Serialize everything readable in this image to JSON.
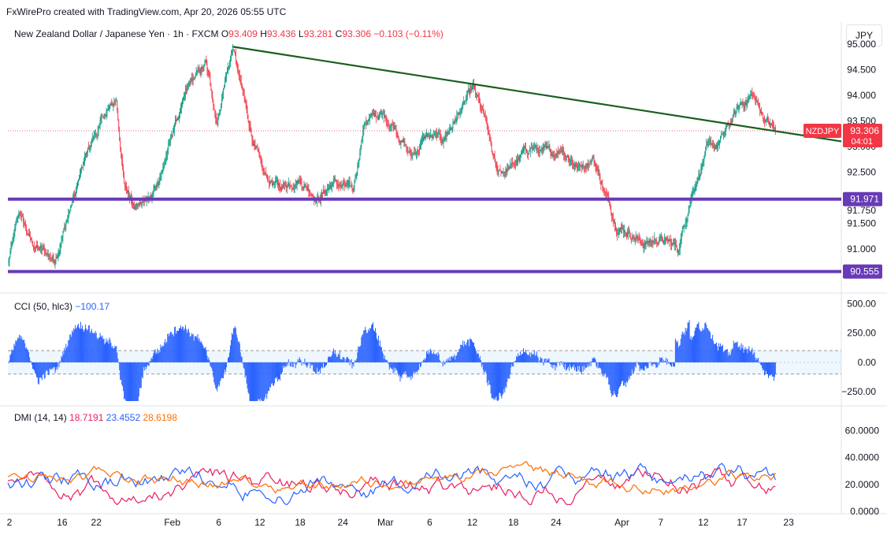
{
  "header": {
    "credit": "FxWirePro created with TradingView.com, Apr 20, 2026 05:55 UTC"
  },
  "legend": {
    "symbol": "New Zealand Dollar / Japanese Yen · 1h · FXCM",
    "o_label": "O",
    "o": "93.409",
    "h_label": "H",
    "h": "93.436",
    "l_label": "L",
    "l": "93.281",
    "c_label": "C",
    "c": "93.306",
    "change": "−0.103 (−0.11%)"
  },
  "currency_button": "JPY",
  "colors": {
    "up": "#089981",
    "down": "#f23645",
    "trend": "#1b5e20",
    "level": "#673ab7",
    "cci": "#2962ff",
    "dmi_plus": "#e91e63",
    "dmi_minus": "#2962ff",
    "adx": "#ff6d00"
  },
  "indicators": {
    "cci": {
      "name": "CCI (50, hlc3)",
      "value": "−100.17"
    },
    "dmi": {
      "name": "DMI (14, 14)",
      "plus": "18.7191",
      "minus": "23.4552",
      "adx": "28.6198"
    }
  },
  "price_axis": {
    "ticks": [
      "95.000",
      "94.500",
      "94.000",
      "93.500",
      "93.000",
      "92.500",
      "91.750",
      "91.500",
      "91.000"
    ],
    "levels": [
      "91.971",
      "90.555"
    ],
    "symbol_tag": "NZDJPY",
    "last_price": "93.306",
    "countdown": "04:01"
  },
  "cci_axis": {
    "ticks": [
      "500.00",
      "250.00",
      "0.00",
      "−250.00"
    ]
  },
  "dmi_axis": {
    "ticks": [
      "60.0000",
      "40.0000",
      "20.0000",
      "0.0000"
    ]
  },
  "time_axis": {
    "labels": [
      "2",
      "16",
      "22",
      "Feb",
      "6",
      "12",
      "18",
      "24",
      "Mar",
      "6",
      "12",
      "18",
      "24",
      "Apr",
      "7",
      "12",
      "17",
      "23"
    ]
  },
  "chart_data": {
    "type": "line",
    "title": "New Zealand Dollar / Japanese Yen · 1h · FXCM",
    "price_ylim": [
      90.55,
      95.0
    ],
    "anchors": [
      [
        0,
        90.7
      ],
      [
        15,
        91.7
      ],
      [
        30,
        91.1
      ],
      [
        60,
        90.8
      ],
      [
        85,
        92.0
      ],
      [
        105,
        93.0
      ],
      [
        125,
        93.6
      ],
      [
        140,
        93.9
      ],
      [
        150,
        92.2
      ],
      [
        165,
        91.9
      ],
      [
        185,
        92.0
      ],
      [
        200,
        92.6
      ],
      [
        215,
        93.4
      ],
      [
        235,
        94.2
      ],
      [
        255,
        94.6
      ],
      [
        270,
        93.5
      ],
      [
        280,
        94.3
      ],
      [
        290,
        94.95
      ],
      [
        300,
        94.2
      ],
      [
        315,
        93.2
      ],
      [
        330,
        92.4
      ],
      [
        350,
        92.2
      ],
      [
        375,
        92.4
      ],
      [
        400,
        92.0
      ],
      [
        420,
        92.3
      ],
      [
        445,
        92.1
      ],
      [
        460,
        93.5
      ],
      [
        480,
        93.6
      ],
      [
        500,
        93.4
      ],
      [
        520,
        92.8
      ],
      [
        540,
        93.2
      ],
      [
        560,
        93.1
      ],
      [
        580,
        93.6
      ],
      [
        600,
        94.1
      ],
      [
        615,
        93.5
      ],
      [
        630,
        92.5
      ],
      [
        650,
        92.6
      ],
      [
        675,
        93.0
      ],
      [
        700,
        92.8
      ],
      [
        715,
        93.0
      ],
      [
        735,
        92.6
      ],
      [
        755,
        92.8
      ],
      [
        770,
        92.1
      ],
      [
        785,
        91.5
      ],
      [
        805,
        91.3
      ],
      [
        820,
        91.1
      ],
      [
        840,
        91.2
      ],
      [
        865,
        91.0
      ],
      [
        880,
        92.0
      ],
      [
        900,
        92.9
      ],
      [
        915,
        93.0
      ],
      [
        930,
        93.4
      ],
      [
        945,
        93.8
      ],
      [
        960,
        94.0
      ],
      [
        975,
        93.6
      ],
      [
        990,
        93.3
      ]
    ],
    "trendline": {
      "from_price": 94.95,
      "to_price": 93.3
    },
    "levels": [
      91.971,
      90.555
    ],
    "last_price": 93.306,
    "cci": {
      "ylim": [
        -350,
        550
      ],
      "bands": [
        100,
        -100
      ],
      "current": -100.17
    },
    "dmi": {
      "ylim": [
        0,
        65
      ],
      "series": [
        {
          "name": "+DI",
          "current": 18.7191
        },
        {
          "name": "-DI",
          "current": 23.4552
        },
        {
          "name": "ADX",
          "current": 28.6198
        }
      ]
    }
  }
}
